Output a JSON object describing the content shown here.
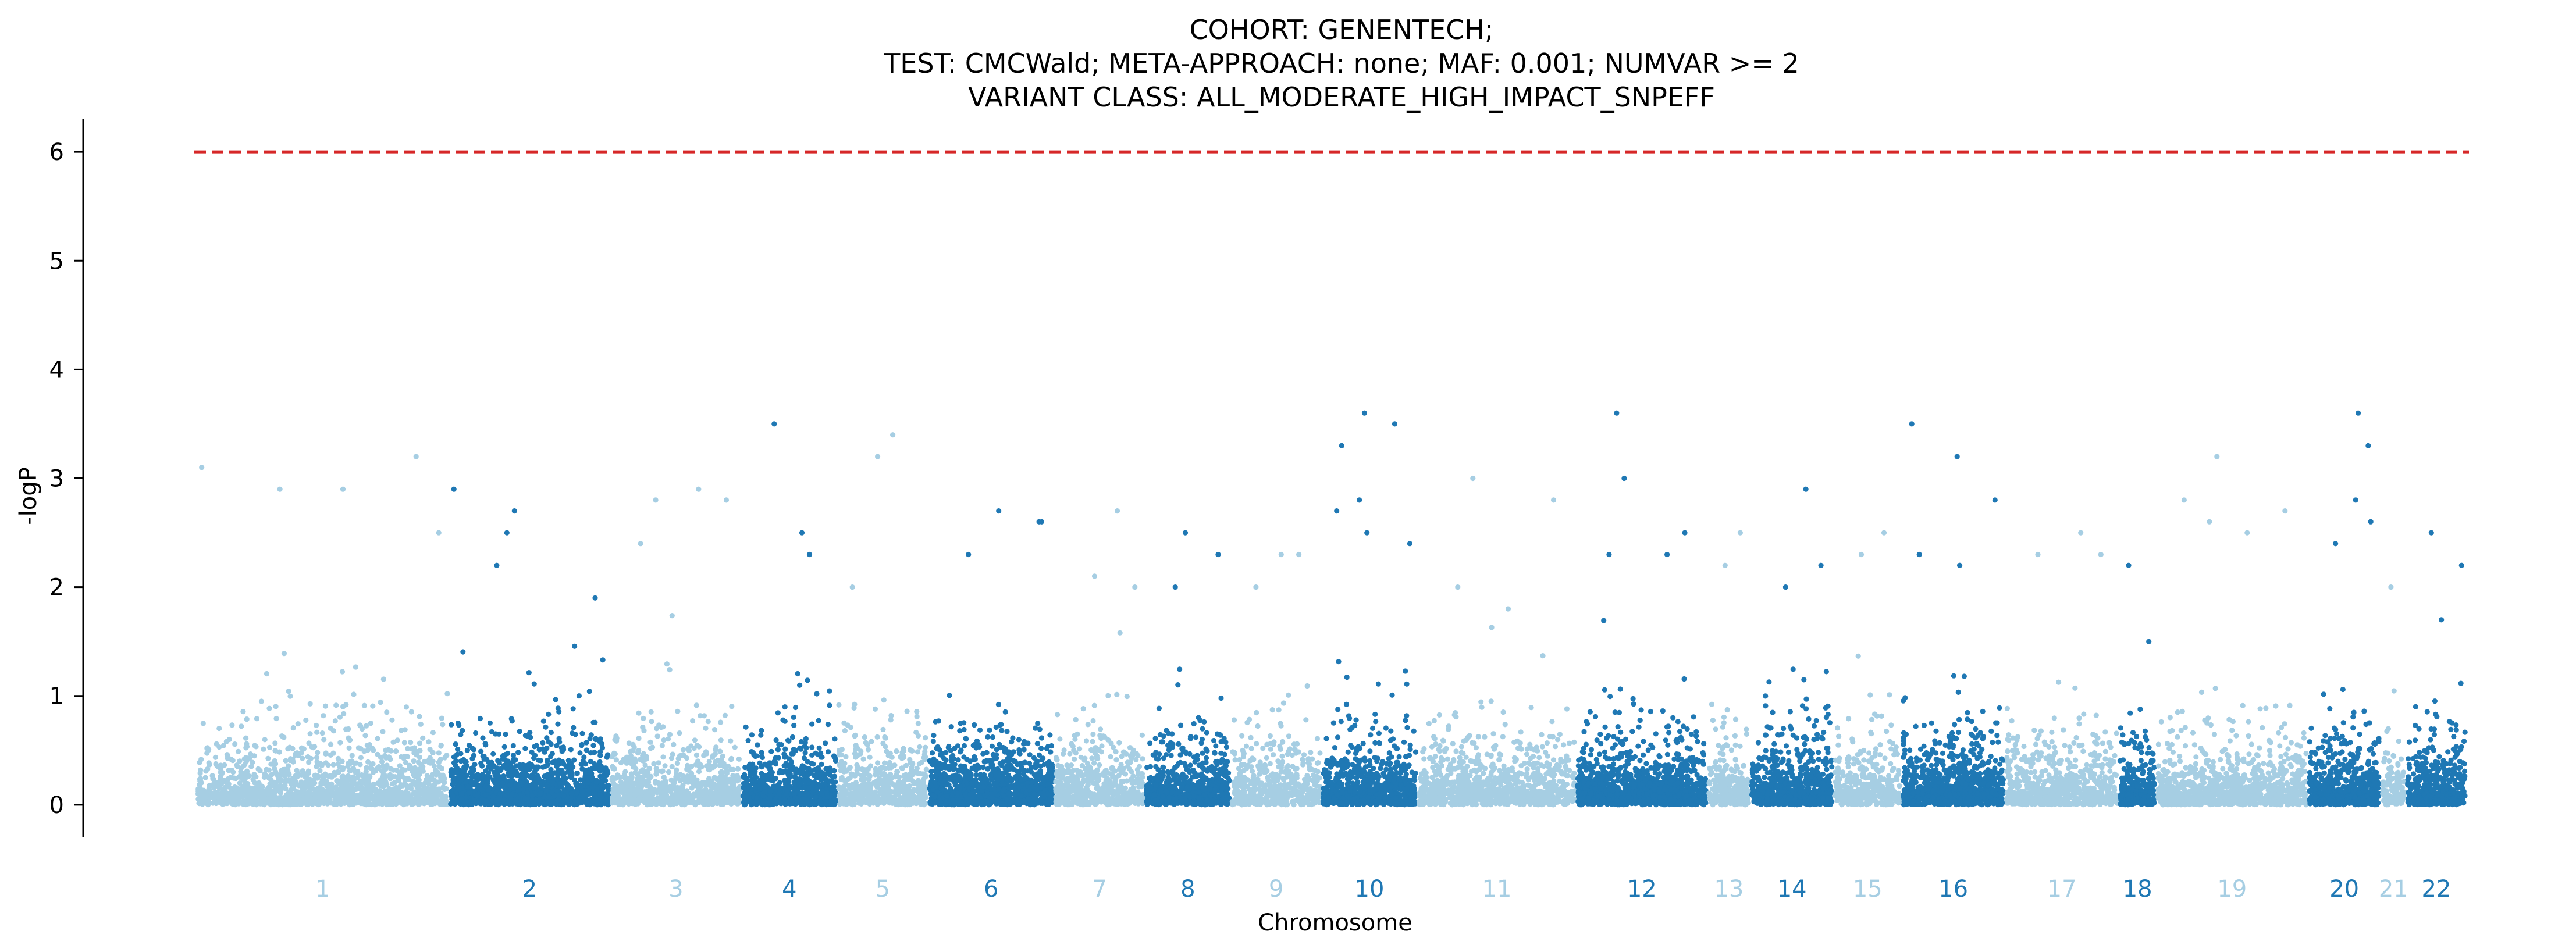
{
  "chart_data": {
    "type": "scatter",
    "title_lines": [
      "COHORT: GENENTECH;",
      "TEST: CMCWald; META-APPROACH: none; MAF: 0.001; NUMVAR >= 2",
      "VARIANT CLASS: ALL_MODERATE_HIGH_IMPACT_SNPEFF"
    ],
    "xlabel": "Chromosome",
    "ylabel": "-logP",
    "ylim": [
      -0.3,
      6.3
    ],
    "yticks": [
      0,
      1,
      2,
      3,
      4,
      5,
      6
    ],
    "threshold": 6,
    "threshold_color": "#d62728",
    "colors": {
      "light": "#a6cee3",
      "dark": "#1f78b4",
      "axis": "#000000"
    },
    "grid": false,
    "legend": "none",
    "chromosomes": [
      {
        "label": "1",
        "start": 0,
        "end": 1000,
        "color": "light",
        "density": 1.0,
        "top": [
          [
            20,
            3.1
          ],
          [
            330,
            2.9
          ],
          [
            580,
            2.9
          ],
          [
            870,
            3.2
          ],
          [
            960,
            2.5
          ]
        ]
      },
      {
        "label": "2",
        "start": 1000,
        "end": 1640,
        "color": "dark",
        "density": 1.4,
        "top": [
          [
            1020,
            2.9
          ],
          [
            1260,
            2.7
          ],
          [
            1230,
            2.5
          ],
          [
            1190,
            2.2
          ],
          [
            1580,
            1.9
          ]
        ]
      },
      {
        "label": "3",
        "start": 1640,
        "end": 2160,
        "color": "light",
        "density": 1.0,
        "top": [
          [
            1820,
            2.8
          ],
          [
            1990,
            2.9
          ],
          [
            2100,
            2.8
          ],
          [
            1760,
            2.4
          ]
        ]
      },
      {
        "label": "4",
        "start": 2160,
        "end": 2540,
        "color": "dark",
        "density": 1.3,
        "top": [
          [
            2290,
            3.5
          ],
          [
            2400,
            2.5
          ],
          [
            2430,
            2.3
          ]
        ]
      },
      {
        "label": "5",
        "start": 2540,
        "end": 2900,
        "color": "light",
        "density": 1.0,
        "top": [
          [
            2760,
            3.4
          ],
          [
            2700,
            3.2
          ],
          [
            2600,
            2.0
          ]
        ]
      },
      {
        "label": "6",
        "start": 2900,
        "end": 3400,
        "color": "dark",
        "density": 1.4,
        "top": [
          [
            3180,
            2.7
          ],
          [
            3340,
            2.6
          ],
          [
            3350,
            2.6
          ],
          [
            3060,
            2.3
          ]
        ]
      },
      {
        "label": "7",
        "start": 3400,
        "end": 3760,
        "color": "light",
        "density": 1.0,
        "top": [
          [
            3650,
            2.7
          ],
          [
            3560,
            2.1
          ],
          [
            3720,
            2.0
          ]
        ]
      },
      {
        "label": "8",
        "start": 3760,
        "end": 4100,
        "color": "dark",
        "density": 1.3,
        "top": [
          [
            3920,
            2.5
          ],
          [
            4050,
            2.3
          ],
          [
            3880,
            2.0
          ]
        ]
      },
      {
        "label": "9",
        "start": 4100,
        "end": 4460,
        "color": "light",
        "density": 0.9,
        "top": [
          [
            4300,
            2.3
          ],
          [
            4370,
            2.3
          ],
          [
            4200,
            2.0
          ]
        ]
      },
      {
        "label": "10",
        "start": 4460,
        "end": 4840,
        "color": "dark",
        "density": 1.3,
        "top": [
          [
            4630,
            3.6
          ],
          [
            4750,
            3.5
          ],
          [
            4540,
            3.3
          ],
          [
            4610,
            2.8
          ],
          [
            4520,
            2.7
          ],
          [
            4640,
            2.5
          ],
          [
            4810,
            2.4
          ]
        ]
      },
      {
        "label": "11",
        "start": 4840,
        "end": 5470,
        "color": "light",
        "density": 1.0,
        "top": [
          [
            5060,
            3.0
          ],
          [
            5380,
            2.8
          ],
          [
            5000,
            2.0
          ],
          [
            5200,
            1.8
          ]
        ]
      },
      {
        "label": "12",
        "start": 5470,
        "end": 5990,
        "color": "dark",
        "density": 1.4,
        "top": [
          [
            5630,
            3.6
          ],
          [
            5660,
            3.0
          ],
          [
            5900,
            2.5
          ],
          [
            5600,
            2.3
          ],
          [
            5830,
            2.3
          ]
        ]
      },
      {
        "label": "13",
        "start": 5990,
        "end": 6160,
        "color": "light",
        "density": 0.9,
        "top": [
          [
            6120,
            2.5
          ],
          [
            6060,
            2.2
          ]
        ]
      },
      {
        "label": "14",
        "start": 6160,
        "end": 6490,
        "color": "dark",
        "density": 1.3,
        "top": [
          [
            6380,
            2.9
          ],
          [
            6440,
            2.2
          ],
          [
            6300,
            2.0
          ]
        ]
      },
      {
        "label": "15",
        "start": 6490,
        "end": 6760,
        "color": "light",
        "density": 0.9,
        "top": [
          [
            6690,
            2.5
          ],
          [
            6600,
            2.3
          ]
        ]
      },
      {
        "label": "16",
        "start": 6760,
        "end": 7170,
        "color": "dark",
        "density": 1.4,
        "top": [
          [
            6800,
            3.5
          ],
          [
            6980,
            3.2
          ],
          [
            7130,
            2.8
          ],
          [
            6830,
            2.3
          ],
          [
            6990,
            2.2
          ]
        ]
      },
      {
        "label": "17",
        "start": 7170,
        "end": 7620,
        "color": "light",
        "density": 1.0,
        "top": [
          [
            7470,
            2.5
          ],
          [
            7300,
            2.3
          ],
          [
            7550,
            2.3
          ]
        ]
      },
      {
        "label": "18",
        "start": 7620,
        "end": 7770,
        "color": "dark",
        "density": 1.2,
        "top": [
          [
            7660,
            2.2
          ],
          [
            7740,
            1.5
          ]
        ]
      },
      {
        "label": "19",
        "start": 7770,
        "end": 8370,
        "color": "light",
        "density": 1.0,
        "top": [
          [
            8010,
            3.2
          ],
          [
            7880,
            2.8
          ],
          [
            7980,
            2.6
          ],
          [
            8130,
            2.5
          ],
          [
            8280,
            2.7
          ]
        ]
      },
      {
        "label": "20",
        "start": 8370,
        "end": 8660,
        "color": "dark",
        "density": 1.3,
        "top": [
          [
            8570,
            3.6
          ],
          [
            8610,
            3.3
          ],
          [
            8560,
            2.8
          ],
          [
            8620,
            2.6
          ],
          [
            8480,
            2.4
          ]
        ]
      },
      {
        "label": "21",
        "start": 8660,
        "end": 8760,
        "color": "light",
        "density": 0.9,
        "top": [
          [
            8700,
            2.0
          ]
        ]
      },
      {
        "label": "22",
        "start": 8760,
        "end": 9000,
        "color": "dark",
        "density": 1.2,
        "top": [
          [
            8860,
            2.5
          ],
          [
            8980,
            2.2
          ],
          [
            8900,
            1.7
          ]
        ]
      }
    ]
  }
}
